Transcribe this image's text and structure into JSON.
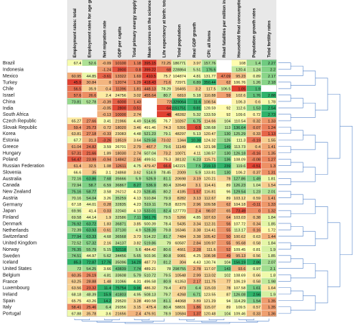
{
  "chart_data": {
    "type": "heatmap",
    "title": "",
    "dendrograms": {
      "rows": "right",
      "columns": "bottom"
    },
    "color_scale": {
      "low": "#e04030",
      "mid": "#ffffb0",
      "high": "#2eb36a",
      "missing": "#ffffff"
    },
    "columns": [
      "Employment rates: total",
      "Employment rates for age group 15-24",
      "Net migration rate",
      "GDP per capita",
      "Total primary energy supply per capita",
      "Mean scores on the science scale PISA",
      "Life expectancy at birth: total",
      "Total population",
      "Real GDP growth",
      "CPI: all items",
      "Road fatalities per million inhabitants",
      "Household final consumption price indices",
      "Population growth rates",
      "Total fertility rates"
    ],
    "rows": [
      {
        "name": "Brazil",
        "values": [
          "67.4",
          "52.6",
          "-0.09",
          "10100",
          "1.18",
          "395.15",
          "72.25",
          "186771",
          "3.97",
          "157.76",
          "",
          "108",
          "1.4",
          "2.27"
        ]
      },
      {
        "name": "Indonesia",
        "values": [
          "",
          "",
          "-1.24",
          "3900",
          "0.8",
          "399.22",
          "68",
          "228864",
          "5.51",
          "176.6",
          "",
          "120.4",
          "1.24",
          "2.2"
        ]
      },
      {
        "name": "Mexico",
        "values": [
          "60.95",
          "44.85",
          "-3.61",
          "13322",
          "1.69",
          "410.5",
          "75.7",
          "104874",
          "4.81",
          "131.77",
          "47.09",
          "95.23",
          "0.89",
          "2.17"
        ]
      },
      {
        "name": "Turkey",
        "values": [
          "45.9",
          "30.84",
          "0",
          "12074",
          "1.29",
          "418.43",
          "71.6",
          "72971",
          "6.89",
          "350.44",
          "62",
          "106.76",
          "1.26",
          "2.18"
        ]
      },
      {
        "name": "Chile",
        "values": [
          "56.5",
          "35.9",
          "0.4",
          "11396",
          "1.81",
          "448.13",
          "78.29",
          "16465",
          "3.2",
          "117.5",
          "106.5",
          "1.05",
          "1.9",
          ""
        ]
      },
      {
        "name": "Israel",
        "values": [
          "57.6",
          "26.6",
          "2.4",
          "24756",
          "3.02",
          "455.64",
          "80.7",
          "6810",
          "5.18",
          "110.88",
          "59",
          "102.6",
          "1.76",
          "2.88"
        ]
      },
      {
        "name": "China",
        "values": [
          "73.81",
          "52.78",
          "-0.39",
          "6000",
          "1.43",
          "",
          "72",
          "1329064",
          "11.6",
          "108.54",
          "",
          "106.3",
          "0.6",
          "1.78"
        ]
      },
      {
        "name": "India",
        "values": [
          "",
          "",
          "-0.05",
          "2800",
          "0.51",
          "",
          "64",
          "1151751",
          "9.81",
          "128.59",
          "92",
          "112.6",
          "1.53",
          "2.54"
        ]
      },
      {
        "name": "South Africa",
        "values": [
          "",
          "",
          "-0.13",
          "10000",
          "2.74",
          "",
          "48",
          "48282",
          "5.32",
          "133.59",
          "92",
          "109.6",
          "0.72",
          "2.73"
        ]
      },
      {
        "name": "Czech Republic",
        "values": [
          "65.27",
          "27.66",
          "3.41",
          "21966",
          "4.49",
          "514.95",
          "76.7",
          "10267",
          "6.75",
          "114.66",
          "104",
          "110.54",
          "0.32",
          "1.33"
        ]
      },
      {
        "name": "Slovak Republic",
        "values": [
          "59.4",
          "25.73",
          "0.72",
          "18020",
          "3.46",
          "491.46",
          "74.3",
          "5391",
          "0.5",
          "138.68",
          "113",
          "136.64",
          "0.07",
          "1.24"
        ]
      },
      {
        "name": "Korea",
        "values": [
          "63.81",
          "27.18",
          "-0.33",
          "23083",
          "4.48",
          "521.23",
          "79.1",
          "48297",
          "5.13",
          "120.47",
          "130",
          "125.29",
          "0.33",
          "1.13"
        ]
      },
      {
        "name": "Estonia",
        "values": [
          "67.7",
          "31.3",
          "-3.26",
          "18519",
          "3.64",
          "529.58",
          "73.02",
          "1344",
          "10.38",
          "124.32",
          "126",
          "111.3",
          "-0.19",
          "1.55"
        ]
      },
      {
        "name": "Greece",
        "values": [
          "61.04",
          "24.82",
          "3.59",
          "26701",
          "2.79",
          "467.7",
          "79.6",
          "11149",
          "4.5",
          "121.98",
          "149",
          "113.73",
          "0.4",
          "1.41"
        ]
      },
      {
        "name": "Hungary",
        "values": [
          "57.31",
          "21.66",
          "1.89",
          "18030",
          "2.74",
          "507.04",
          "73.2",
          "10071",
          "4.11",
          "138.57",
          "130",
          "126.18",
          "-0.16",
          "1.35"
        ]
      },
      {
        "name": "Poland",
        "values": [
          "54.47",
          "23.99",
          "-0.94",
          "14842",
          "2.56",
          "499.51",
          "75.3",
          "38132",
          "6.23",
          "115.71",
          "136",
          "108.09",
          "-0.08",
          "1.27"
        ]
      },
      {
        "name": "Russian Federation",
        "values": [
          "61.4",
          "32.5",
          "1.08",
          "12611",
          "4.75",
          "479.47",
          "66.6",
          "142221",
          "7.5",
          "219.13",
          "239",
          "119.6",
          "-0.51",
          "1.3"
        ]
      },
      {
        "name": "Slovenia",
        "values": [
          "66.6",
          "35",
          "3.1",
          "24868",
          "3.62",
          "514.9",
          "78.45",
          "2009",
          "5.9",
          "133.81",
          "130",
          "106.2",
          "0.37",
          "1.31"
        ]
      },
      {
        "name": "Australia",
        "values": [
          "72.16",
          "63.86",
          "7.68",
          "35666",
          "5.9",
          "526.9",
          "81.1",
          "20698",
          "3.19",
          "120.21",
          "78",
          "127.86",
          "1.49",
          "1.81"
        ]
      },
      {
        "name": "Canada",
        "values": [
          "72.94",
          "58.7",
          "6.59",
          "36867",
          "8.27",
          "536.9",
          "80.4",
          "32649",
          "3.1",
          "114.41",
          "89",
          "126.23",
          "1.04",
          "1.54"
        ]
      },
      {
        "name": "New Zealand",
        "values": [
          "75.16",
          "58.77",
          "3.58",
          "26212",
          "4.23",
          "528.45",
          "80.2",
          "4185",
          "1.57",
          "116.81",
          "96",
          "129.54",
          "1.23",
          "2.01"
        ]
      },
      {
        "name": "Austria",
        "values": [
          "70.16",
          "54.04",
          "3.26",
          "35259",
          "4.13",
          "510.84",
          "79.9",
          "8282",
          "3.13",
          "112.67",
          "89",
          "103.12",
          "0.59",
          "1.41"
        ]
      },
      {
        "name": "Germany",
        "values": [
          "67.18",
          "44.01",
          "0.28",
          "32835",
          "4.23",
          "519.11",
          "79.8",
          "82376",
          "2.96",
          "109.58",
          "62",
          "104.18",
          "-0.11",
          "1.33"
        ]
      },
      {
        "name": "Japan",
        "values": [
          "69.96",
          "41.4",
          "0.03",
          "32040",
          "4.13",
          "533.01",
          "82.4",
          "127770",
          "2.4",
          "98.07",
          "65",
          "73.49",
          "0",
          "1.32"
        ]
      },
      {
        "name": "Finland",
        "values": [
          "69.58",
          "44.14",
          "1.9",
          "32586",
          "7.11",
          "561.76",
          "79.5",
          "5266",
          "4.85",
          "107.63",
          "64",
          "103.03",
          "0.38",
          "1.84"
        ]
      },
      {
        "name": "Denmark",
        "values": [
          "76.92",
          "63.72",
          "1.83",
          "36871",
          "3.85",
          "500.39",
          "78.4",
          "5435",
          "3.34",
          "112.31",
          "56",
          "107.72",
          "0.34",
          "1.85"
        ]
      },
      {
        "name": "Netherlands",
        "values": [
          "72.39",
          "63.93",
          "0.61",
          "37130",
          "4.9",
          "528.39",
          "79.8",
          "16346",
          "3.38",
          "114.41",
          "55",
          "113.17",
          "0.16",
          "1.72"
        ]
      },
      {
        "name": "Switzerland",
        "values": [
          "77.94",
          "63.33",
          "4.68",
          "36568",
          "3.73",
          "514.22",
          "81.7",
          "7484",
          "3.38",
          "105.42",
          "50",
          "100.62",
          "0.63",
          "1.44"
        ]
      },
      {
        "name": "United Kingdom",
        "values": [
          "72.52",
          "57.32",
          "2.16",
          "34137",
          "3.82",
          "519.86",
          "79",
          "60587",
          "2.84",
          "109.97",
          "55",
          "95.68",
          "0.58",
          "1.84"
        ]
      },
      {
        "name": "Norway",
        "values": [
          "76.35",
          "55.79",
          "5.15",
          "52118",
          "5.6",
          "484.42",
          "80.6",
          "4661",
          "2.28",
          "111.6",
          "52",
          "109.45",
          "0.81",
          "1.9"
        ]
      },
      {
        "name": "Sweden",
        "values": [
          "74.51",
          "44.97",
          "5.62",
          "34456",
          "5.65",
          "503.96",
          "80.8",
          "9081",
          "4.25",
          "108.98",
          "49",
          "95.13",
          "0.56",
          "1.85"
        ]
      },
      {
        "name": "Iceland",
        "values": [
          "85.3",
          "72.87",
          "17.76",
          "35096",
          "14.29",
          "487.73",
          "81.2",
          "304",
          "4.43",
          "130.74",
          "104",
          "156.19",
          "2.86",
          "2.07"
        ]
      },
      {
        "name": "United States",
        "values": [
          "72",
          "54.25",
          "3.66",
          "43839",
          "7.74",
          "489.21",
          "78",
          "298755",
          "2.78",
          "117.07",
          "143",
          "93.6",
          "0.97",
          "2.1"
        ]
      },
      {
        "name": "Belgium",
        "values": [
          "60.35",
          "26.19",
          "4.81",
          "33608",
          "5.79",
          "510.72",
          "79.5",
          "10548",
          "2.99",
          "113.02",
          "102",
          "108.69",
          "0.66",
          "1.8"
        ]
      },
      {
        "name": "France",
        "values": [
          "63.25",
          "28.88",
          "1.48",
          "31066",
          "4.31",
          "496.58",
          "80.9",
          "61353",
          "2.17",
          "111.75",
          "77",
          "106.19",
          "0.58",
          "1.98"
        ]
      },
      {
        "name": "Luxembourg",
        "values": [
          "63.56",
          "23.32",
          "11.4",
          "75754",
          "9.96",
          "486.32",
          "79.4",
          "473",
          "6.4",
          "115.03",
          "78",
          "107.58",
          "1.61",
          "1.64"
        ]
      },
      {
        "name": "Ireland",
        "values": [
          "68.18",
          "48.39",
          "15.9",
          "41803",
          "4.95",
          "508.13",
          "79.7",
          "4268",
          "6.71",
          "123.55",
          "87",
          "126.08",
          "2.56",
          "1.9"
        ]
      },
      {
        "name": "Spain",
        "values": [
          "65.75",
          "43.26",
          "14.2",
          "29520",
          "3.28",
          "490.58",
          "81.1",
          "44068",
          "3.89",
          "121.29",
          "94",
          "114.29",
          "1.54",
          "1.35"
        ]
      },
      {
        "name": "Italy",
        "values": [
          "58.41",
          "25.46",
          "6.4",
          "29356",
          "3.15",
          "475.4",
          "80.4",
          "58831",
          "1.86",
          "115.07",
          "89",
          "109.5",
          "0.57",
          "1.35"
        ]
      },
      {
        "name": "Portugal",
        "values": [
          "67.88",
          "35.78",
          "3.6",
          "21656",
          "2.4",
          "476.91",
          "78.9",
          "10584",
          "1.37",
          "120.48",
          "104",
          "109.46",
          "0.33",
          "1.36"
        ]
      }
    ]
  }
}
